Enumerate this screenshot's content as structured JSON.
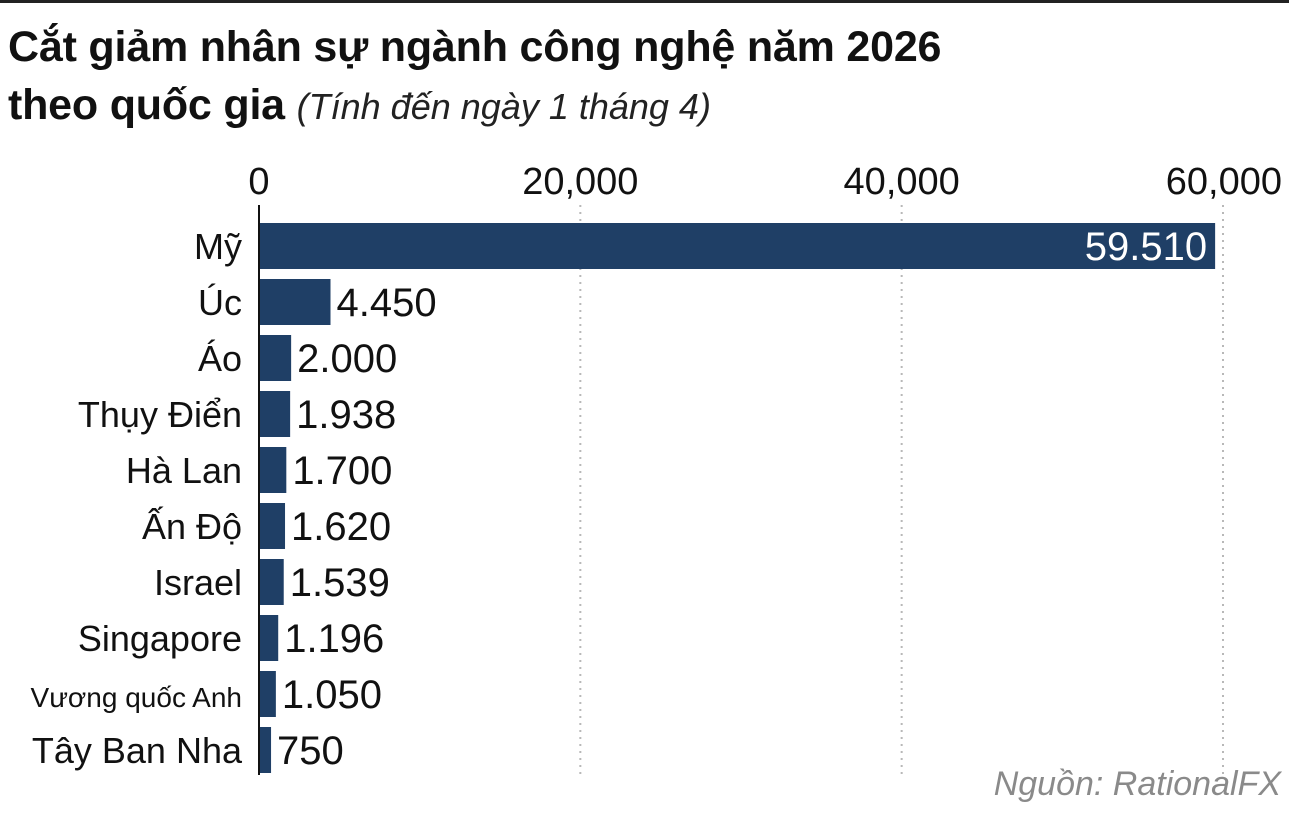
{
  "colors": {
    "bar": "#1f3f66",
    "grid": "#b8b8b8",
    "axis": "#111111",
    "text": "#111111",
    "source": "#8a8a8a"
  },
  "chart_data": {
    "type": "bar",
    "orientation": "horizontal",
    "title": "Cắt giảm nhân sự ngành công nghệ năm 2026",
    "title_line2": "theo quốc gia",
    "subtitle": "(Tính đến ngày 1 tháng 4)",
    "xlabel": "",
    "ylabel": "",
    "xlim": [
      0,
      60000
    ],
    "x_ticks": [
      0,
      20000,
      40000,
      60000
    ],
    "x_tick_labels": [
      "0",
      "20,000",
      "40,000",
      "60,000"
    ],
    "categories": [
      "Mỹ",
      "Úc",
      "Áo",
      "Thụy Điển",
      "Hà Lan",
      "Ấn Độ",
      "Israel",
      "Singapore",
      "Vương quốc Anh",
      "Tây Ban Nha"
    ],
    "values": [
      59510,
      4450,
      2000,
      1938,
      1700,
      1620,
      1539,
      1196,
      1050,
      750
    ],
    "value_labels": [
      "59.510",
      "4.450",
      "2.000",
      "1.938",
      "1.700",
      "1.620",
      "1.539",
      "1.196",
      "1.050",
      "750"
    ],
    "grid": true,
    "legend": "none",
    "source": "Nguồn: RationalFX"
  }
}
